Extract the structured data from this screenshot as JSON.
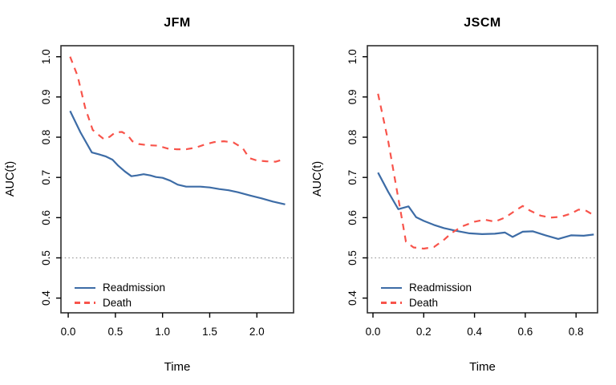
{
  "figure": {
    "background": "#ffffff"
  },
  "colors": {
    "readmission": "#3D6CA6",
    "death": "#F8544B",
    "reference": "#999999",
    "axis": "#000000",
    "box": "#2e2e2e"
  },
  "legend": {
    "readmission_label": "Readmission",
    "death_label": "Death"
  },
  "chart_data": [
    {
      "type": "line",
      "title": "JFM",
      "xlabel": "Time",
      "ylabel": "AUC(t)",
      "xlim": [
        -0.077,
        2.389
      ],
      "ylim": [
        0.3634,
        1.0274
      ],
      "xticks": [
        0.0,
        0.5,
        1.0,
        1.5,
        2.0
      ],
      "yticks": [
        0.4,
        0.5,
        0.6,
        0.7,
        0.8,
        0.9,
        1.0
      ],
      "reference_line_y": 0.5,
      "grid": false,
      "legend_position": "bottom-left",
      "series": [
        {
          "name": "Readmission",
          "style": "solid",
          "color_key": "readmission",
          "x": [
            0.02,
            0.13,
            0.25,
            0.33,
            0.4,
            0.47,
            0.53,
            0.6,
            0.67,
            0.73,
            0.8,
            0.87,
            0.93,
            1.0,
            1.08,
            1.16,
            1.25,
            1.4,
            1.5,
            1.6,
            1.7,
            1.8,
            1.93,
            2.05,
            2.17,
            2.3
          ],
          "y": [
            0.865,
            0.812,
            0.762,
            0.757,
            0.752,
            0.744,
            0.729,
            0.715,
            0.703,
            0.705,
            0.708,
            0.705,
            0.701,
            0.699,
            0.692,
            0.682,
            0.677,
            0.677,
            0.675,
            0.671,
            0.668,
            0.663,
            0.655,
            0.648,
            0.64,
            0.633
          ]
        },
        {
          "name": "Death",
          "style": "dashed",
          "color_key": "death",
          "x": [
            0.02,
            0.1,
            0.18,
            0.26,
            0.32,
            0.38,
            0.44,
            0.5,
            0.57,
            0.63,
            0.68,
            0.75,
            0.85,
            0.95,
            1.05,
            1.15,
            1.25,
            1.35,
            1.45,
            1.55,
            1.65,
            1.75,
            1.85,
            1.92,
            2.0,
            2.1,
            2.2,
            2.3
          ],
          "y": [
            1.0,
            0.952,
            0.873,
            0.818,
            0.806,
            0.795,
            0.801,
            0.812,
            0.813,
            0.805,
            0.79,
            0.783,
            0.78,
            0.779,
            0.772,
            0.77,
            0.77,
            0.774,
            0.782,
            0.788,
            0.79,
            0.787,
            0.773,
            0.748,
            0.742,
            0.74,
            0.739,
            0.746
          ]
        }
      ]
    },
    {
      "type": "line",
      "title": "JSCM",
      "xlabel": "Time",
      "ylabel": "AUC(t)",
      "xlim": [
        -0.0221,
        0.8847
      ],
      "ylim": [
        0.3634,
        1.0274
      ],
      "xticks": [
        0.0,
        0.2,
        0.4,
        0.6,
        0.8
      ],
      "yticks": [
        0.4,
        0.5,
        0.6,
        0.7,
        0.8,
        0.9,
        1.0
      ],
      "reference_line_y": 0.5,
      "grid": false,
      "legend_position": "bottom-left",
      "series": [
        {
          "name": "Readmission",
          "style": "solid",
          "color_key": "readmission",
          "x": [
            0.02,
            0.06,
            0.1,
            0.14,
            0.17,
            0.2,
            0.24,
            0.28,
            0.33,
            0.38,
            0.43,
            0.48,
            0.52,
            0.55,
            0.59,
            0.63,
            0.68,
            0.73,
            0.78,
            0.83,
            0.87
          ],
          "y": [
            0.712,
            0.664,
            0.621,
            0.628,
            0.601,
            0.592,
            0.582,
            0.574,
            0.567,
            0.561,
            0.559,
            0.56,
            0.563,
            0.552,
            0.565,
            0.566,
            0.556,
            0.547,
            0.556,
            0.555,
            0.558
          ]
        },
        {
          "name": "Death",
          "style": "dashed",
          "color_key": "death",
          "x": [
            0.02,
            0.06,
            0.1,
            0.13,
            0.16,
            0.2,
            0.24,
            0.28,
            0.31,
            0.35,
            0.4,
            0.44,
            0.48,
            0.52,
            0.56,
            0.59,
            0.62,
            0.66,
            0.7,
            0.74,
            0.78,
            0.81,
            0.84,
            0.87
          ],
          "y": [
            0.908,
            0.79,
            0.648,
            0.54,
            0.526,
            0.523,
            0.527,
            0.545,
            0.562,
            0.578,
            0.59,
            0.595,
            0.59,
            0.6,
            0.617,
            0.629,
            0.617,
            0.605,
            0.6,
            0.602,
            0.61,
            0.62,
            0.617,
            0.606
          ]
        }
      ]
    }
  ]
}
